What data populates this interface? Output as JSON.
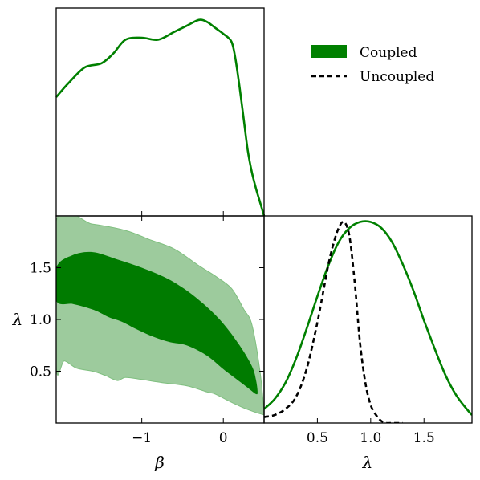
{
  "chart_data": [
    {
      "panel": "beta-marginal",
      "type": "line",
      "xlabel": "",
      "ylabel": "",
      "xlim": [
        -2.05,
        0.5
      ],
      "ylim": [
        0,
        1.05
      ],
      "series": [
        {
          "name": "Coupled",
          "color": "#008000",
          "x": [
            -2.05,
            -1.9,
            -1.7,
            -1.5,
            -1.35,
            -1.2,
            -1.0,
            -0.8,
            -0.6,
            -0.45,
            -0.3,
            -0.2,
            -0.1,
            0.0,
            0.1,
            0.15,
            0.2,
            0.25,
            0.3,
            0.35,
            0.4,
            0.45,
            0.5
          ],
          "y": [
            0.6,
            0.67,
            0.75,
            0.77,
            0.82,
            0.89,
            0.9,
            0.89,
            0.93,
            0.96,
            0.99,
            0.98,
            0.95,
            0.92,
            0.88,
            0.79,
            0.65,
            0.49,
            0.33,
            0.22,
            0.14,
            0.07,
            0.0
          ]
        }
      ]
    },
    {
      "panel": "beta-lambda-joint",
      "type": "contour",
      "xlabel": "β",
      "ylabel": "λ",
      "xlim": [
        -2.05,
        0.5
      ],
      "ylim": [
        0.0,
        2.0
      ],
      "xticks": [
        -1,
        0
      ],
      "xticklabels": [
        "−1",
        "0"
      ],
      "yticks": [
        0.5,
        1.0,
        1.5
      ],
      "yticklabels": [
        "0.5",
        "1.0",
        "1.5"
      ],
      "series": [
        {
          "name": "Coupled 95%",
          "color": "#9dcb9d",
          "boundary_x": [
            -2.05,
            -1.6,
            -1.2,
            -0.9,
            -0.6,
            -0.3,
            -0.1,
            0.1,
            0.25,
            0.35,
            0.45,
            0.5,
            0.5,
            0.3,
            0.1,
            -0.1,
            -0.2,
            -0.45,
            -0.75,
            -1.0,
            -1.2,
            -1.3,
            -1.45,
            -1.6,
            -1.8,
            -1.95,
            -2.05
          ],
          "boundary_y": [
            1.95,
            1.92,
            1.86,
            1.77,
            1.68,
            1.52,
            1.42,
            1.3,
            1.1,
            0.95,
            0.5,
            0.1,
            0.08,
            0.13,
            0.2,
            0.28,
            0.3,
            0.36,
            0.39,
            0.42,
            0.44,
            0.41,
            0.46,
            0.5,
            0.53,
            0.6,
            0.55
          ]
        },
        {
          "name": "Coupled 68%",
          "color": "#007b00",
          "boundary_x": [
            -2.05,
            -1.85,
            -1.6,
            -1.3,
            -1.0,
            -0.7,
            -0.45,
            -0.2,
            0.0,
            0.2,
            0.35,
            0.4,
            0.42,
            0.4,
            0.3,
            0.15,
            0.0,
            -0.2,
            -0.45,
            -0.65,
            -0.85,
            -1.05,
            -1.25,
            -1.4,
            -1.55,
            -1.7,
            -1.85,
            -2.05
          ],
          "boundary_y": [
            1.5,
            1.62,
            1.65,
            1.58,
            1.5,
            1.4,
            1.28,
            1.12,
            0.96,
            0.75,
            0.55,
            0.42,
            0.3,
            0.28,
            0.34,
            0.43,
            0.52,
            0.65,
            0.75,
            0.78,
            0.83,
            0.9,
            0.98,
            1.02,
            1.08,
            1.12,
            1.15,
            1.18
          ]
        }
      ]
    },
    {
      "panel": "lambda-marginal",
      "type": "line",
      "xlabel": "λ",
      "ylabel": "",
      "xlim": [
        0.0,
        1.95
      ],
      "ylim": [
        0,
        1.03
      ],
      "xticks": [
        0.5,
        1.0,
        1.5
      ],
      "xticklabels": [
        "0.5",
        "1.0",
        "1.5"
      ],
      "series": [
        {
          "name": "Coupled",
          "color": "#008000",
          "style": "solid",
          "x": [
            0.0,
            0.1,
            0.2,
            0.3,
            0.4,
            0.5,
            0.6,
            0.7,
            0.8,
            0.9,
            1.0,
            1.1,
            1.2,
            1.3,
            1.4,
            1.5,
            1.6,
            1.7,
            1.8,
            1.9,
            1.95
          ],
          "y": [
            0.07,
            0.12,
            0.2,
            0.32,
            0.47,
            0.63,
            0.78,
            0.9,
            0.97,
            1.0,
            1.0,
            0.97,
            0.9,
            0.79,
            0.66,
            0.51,
            0.37,
            0.24,
            0.14,
            0.07,
            0.04
          ]
        },
        {
          "name": "Uncoupled",
          "color": "#000000",
          "style": "dashed",
          "x": [
            0.0,
            0.1,
            0.2,
            0.3,
            0.4,
            0.5,
            0.55,
            0.6,
            0.65,
            0.7,
            0.75,
            0.8,
            0.85,
            0.9,
            0.95,
            1.0,
            1.05,
            1.1,
            1.15,
            1.2,
            1.3
          ],
          "y": [
            0.03,
            0.04,
            0.07,
            0.13,
            0.27,
            0.5,
            0.64,
            0.78,
            0.89,
            0.97,
            1.0,
            0.93,
            0.7,
            0.4,
            0.2,
            0.09,
            0.04,
            0.01,
            0.0,
            0.0,
            0.0
          ]
        }
      ]
    }
  ],
  "legend": {
    "items": [
      {
        "label": "Coupled",
        "kind": "patch",
        "color": "#008000"
      },
      {
        "label": "Uncoupled",
        "kind": "dashed",
        "color": "#000000"
      }
    ]
  }
}
